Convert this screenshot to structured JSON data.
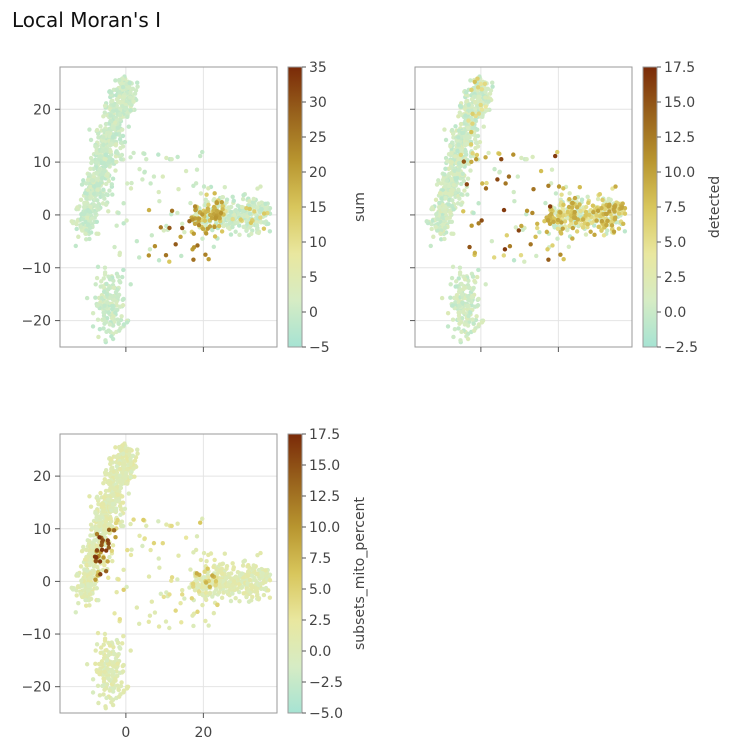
{
  "title": "Local Moran's I",
  "chart_data": [
    {
      "type": "scatter",
      "xlim": [
        -17,
        39
      ],
      "ylim": [
        -25,
        28
      ],
      "xticks": [
        0,
        20
      ],
      "xtick_labels_shown": false,
      "yticks": [
        -20,
        -10,
        0,
        10,
        20
      ],
      "grid": true,
      "colorbar": {
        "label": "sum",
        "range": [
          -5,
          35
        ],
        "ticks": [
          -5,
          0,
          5,
          10,
          15,
          20,
          25,
          30,
          35
        ],
        "tick_labels": [
          "−5",
          "0",
          "5",
          "10",
          "15",
          "20",
          "25",
          "30",
          "35"
        ]
      }
    },
    {
      "type": "scatter",
      "xlim": [
        -17,
        39
      ],
      "ylim": [
        -25,
        28
      ],
      "xticks": [
        0,
        20
      ],
      "xtick_labels_shown": false,
      "yticks": [
        -20,
        -10,
        0,
        10,
        20
      ],
      "ytick_labels_shown": false,
      "grid": true,
      "colorbar": {
        "label": "detected",
        "range": [
          -2.5,
          17.5
        ],
        "ticks": [
          -2.5,
          0,
          2.5,
          5,
          7.5,
          10,
          12.5,
          15,
          17.5
        ],
        "tick_labels": [
          "−2.5",
          "0.0",
          "2.5",
          "5.0",
          "7.5",
          "10.0",
          "12.5",
          "15.0",
          "17.5"
        ]
      }
    },
    {
      "type": "scatter",
      "xlim": [
        -17,
        39
      ],
      "ylim": [
        -25,
        28
      ],
      "xticks": [
        0,
        20
      ],
      "xtick_labels": [
        "0",
        "20"
      ],
      "yticks": [
        -20,
        -10,
        0,
        10,
        20
      ],
      "grid": true,
      "colorbar": {
        "label": "subsets_mito_percent",
        "range": [
          -5,
          17.5
        ],
        "ticks": [
          -5,
          -2.5,
          0,
          2.5,
          5,
          7.5,
          10,
          12.5,
          15,
          17.5
        ],
        "tick_labels": [
          "−5.0",
          "−2.5",
          "0.0",
          "2.5",
          "5.0",
          "7.5",
          "10.0",
          "12.5",
          "15.0",
          "17.5"
        ]
      }
    }
  ],
  "ytick_labels": [
    "−20",
    "−10",
    "0",
    "10",
    "20"
  ],
  "colormap": [
    "#a6e3d3",
    "#d6ecc4",
    "#e9e79f",
    "#d8c65c",
    "#b8952f",
    "#98621c",
    "#7a2a08"
  ]
}
